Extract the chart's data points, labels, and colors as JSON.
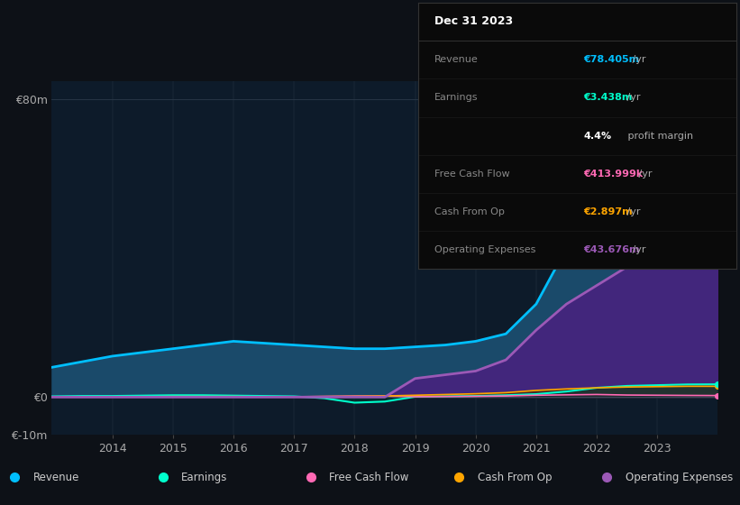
{
  "bg_color": "#0d1117",
  "plot_bg_color": "#0d1b2a",
  "grid_color": "#2a3a4a",
  "years": [
    2013.0,
    2013.5,
    2014.0,
    2014.5,
    2015.0,
    2015.5,
    2016.0,
    2016.5,
    2017.0,
    2017.5,
    2018.0,
    2018.5,
    2019.0,
    2019.5,
    2020.0,
    2020.5,
    2021.0,
    2021.5,
    2022.0,
    2022.5,
    2023.0,
    2023.5,
    2024.0
  ],
  "revenue": [
    8,
    9.5,
    11,
    12,
    13,
    14,
    15,
    14.5,
    14,
    13.5,
    13,
    13,
    13.5,
    14,
    15,
    17,
    25,
    40,
    55,
    65,
    70,
    75,
    78.4
  ],
  "earnings": [
    0.2,
    0.3,
    0.3,
    0.4,
    0.5,
    0.5,
    0.4,
    0.3,
    0.2,
    -0.3,
    -1.5,
    -1.2,
    0.1,
    0.2,
    0.3,
    0.5,
    0.8,
    1.5,
    2.5,
    3.0,
    3.2,
    3.4,
    3.438
  ],
  "free_cash_flow": [
    0.1,
    0.1,
    0.1,
    0.1,
    0.1,
    0.05,
    0.05,
    0.05,
    0.1,
    0.2,
    0.3,
    0.3,
    0.1,
    0.15,
    0.2,
    0.3,
    0.5,
    0.6,
    0.7,
    0.55,
    0.5,
    0.45,
    0.414
  ],
  "cash_from_op": [
    0.05,
    0.08,
    0.1,
    0.1,
    0.15,
    0.15,
    0.15,
    0.1,
    0.1,
    0.15,
    0.2,
    0.3,
    0.5,
    0.7,
    0.9,
    1.2,
    1.8,
    2.2,
    2.5,
    2.7,
    2.8,
    2.9,
    2.897
  ],
  "operating_expenses": [
    0,
    0,
    0,
    0,
    0,
    0,
    0,
    0,
    0,
    0,
    0,
    0,
    5,
    6,
    7,
    10,
    18,
    25,
    30,
    35,
    38,
    41,
    43.676
  ],
  "ylim": [
    -10,
    85
  ],
  "yticks": [
    -10,
    0,
    80
  ],
  "ytick_labels": [
    "€-10m",
    "€0",
    "€80m"
  ],
  "xtick_years": [
    2014,
    2015,
    2016,
    2017,
    2018,
    2019,
    2020,
    2021,
    2022,
    2023
  ],
  "revenue_color": "#00bfff",
  "revenue_fill": "#1a4a6a",
  "earnings_color": "#00ffcc",
  "fcf_color": "#ff69b4",
  "cashop_color": "#ffa500",
  "opex_color": "#9b59b6",
  "opex_fill": "#4a2080",
  "info_box": {
    "title": "Dec 31 2023",
    "rows": [
      {
        "label": "Revenue",
        "value": "€78.405m /yr",
        "value_color": "#00bfff"
      },
      {
        "label": "Earnings",
        "value": "€3.438m /yr",
        "value_color": "#00ffcc"
      },
      {
        "label": "",
        "value": "4.4% profit margin",
        "value_color": "#ffffff",
        "bold_part": "4.4%"
      },
      {
        "label": "Free Cash Flow",
        "value": "€413.999k /yr",
        "value_color": "#ff69b4"
      },
      {
        "label": "Cash From Op",
        "value": "€2.897m /yr",
        "value_color": "#ffa500"
      },
      {
        "label": "Operating Expenses",
        "value": "€43.676m /yr",
        "value_color": "#9b59b6"
      }
    ]
  },
  "legend_items": [
    {
      "label": "Revenue",
      "color": "#00bfff"
    },
    {
      "label": "Earnings",
      "color": "#00ffcc"
    },
    {
      "label": "Free Cash Flow",
      "color": "#ff69b4"
    },
    {
      "label": "Cash From Op",
      "color": "#ffa500"
    },
    {
      "label": "Operating Expenses",
      "color": "#9b59b6"
    }
  ]
}
